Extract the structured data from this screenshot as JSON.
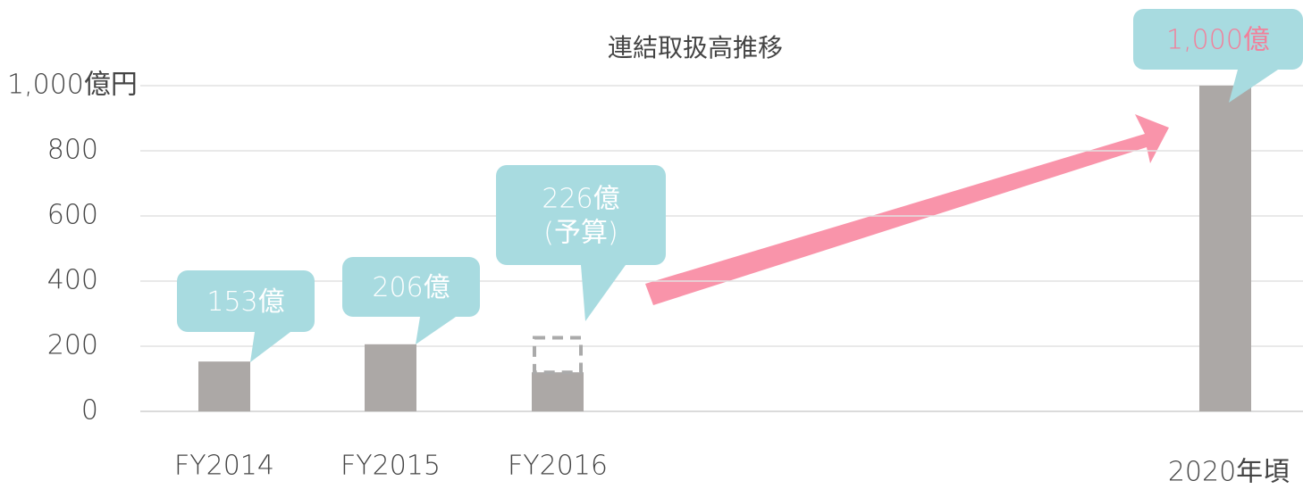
{
  "chart_data": {
    "type": "bar",
    "title": "連結取扱高推移",
    "categories": [
      "FY2014",
      "FY2015",
      "FY2016",
      "2020年頃"
    ],
    "values": [
      153,
      206,
      120,
      1000
    ],
    "value_labels": [
      "153億",
      "206億",
      null,
      "1,000億"
    ],
    "budget": {
      "category": "FY2016",
      "value": 226,
      "label": "226億",
      "note": "(予算)"
    },
    "color": "#aca8a6",
    "ylim": [
      0,
      1000
    ],
    "yticks": [
      0,
      200,
      400,
      600,
      800,
      {
        "value": 1000,
        "label": "1,000億円"
      }
    ],
    "grid": true
  }
}
